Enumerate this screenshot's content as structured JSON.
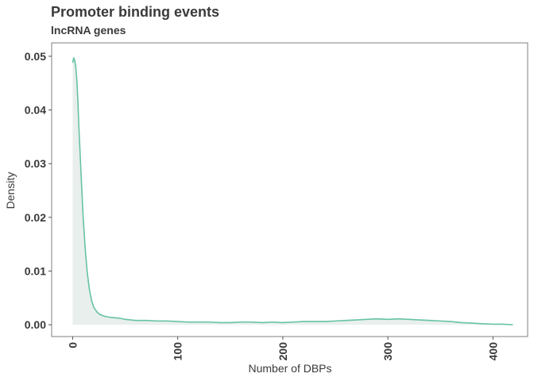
{
  "chart_data": {
    "type": "area",
    "title": "Promoter binding events",
    "subtitle": "lncRNA genes",
    "xlabel": "Number of DBPs",
    "ylabel": "Density",
    "xlim": [
      -20,
      433
    ],
    "ylim": [
      -0.0022,
      0.0525
    ],
    "x_ticks": [
      0,
      100,
      200,
      300,
      400
    ],
    "y_ticks": [
      0.0,
      0.01,
      0.02,
      0.03,
      0.04,
      0.05
    ],
    "x_tick_labels": [
      "0",
      "100",
      "200",
      "300",
      "400"
    ],
    "y_tick_labels": [
      "0.00",
      "0.01",
      "0.02",
      "0.03",
      "0.04",
      "0.05"
    ],
    "grid": false,
    "legend": "none",
    "colors": {
      "line": "#66c2a5",
      "fill": "#e9efec",
      "frame": "#7f7f7f",
      "text": "#3a3a3a"
    },
    "series": [
      {
        "x": [
          0,
          1,
          2,
          3,
          4,
          5,
          6,
          8,
          10,
          12,
          14,
          16,
          18,
          20,
          23,
          26,
          30,
          35,
          40,
          45,
          50,
          60,
          70,
          80,
          90,
          100,
          110,
          120,
          130,
          140,
          150,
          160,
          170,
          180,
          190,
          200,
          210,
          220,
          230,
          240,
          250,
          260,
          270,
          280,
          290,
          300,
          310,
          320,
          330,
          340,
          350,
          360,
          370,
          380,
          390,
          400,
          410,
          419
        ],
        "y": [
          0.0488,
          0.0497,
          0.0492,
          0.048,
          0.0455,
          0.0415,
          0.0365,
          0.028,
          0.02,
          0.014,
          0.0095,
          0.0065,
          0.0045,
          0.0033,
          0.0024,
          0.0019,
          0.0016,
          0.0014,
          0.0013,
          0.0012,
          0.001,
          0.0008,
          0.0008,
          0.0007,
          0.0007,
          0.0006,
          0.0005,
          0.0005,
          0.0005,
          0.0004,
          0.0004,
          0.0005,
          0.0005,
          0.0004,
          0.0005,
          0.0004,
          0.0005,
          0.0006,
          0.0006,
          0.0006,
          0.0007,
          0.0008,
          0.0009,
          0.001,
          0.0011,
          0.001,
          0.0011,
          0.001,
          0.0009,
          0.0008,
          0.0007,
          0.0006,
          0.0004,
          0.0003,
          0.0002,
          0.0001,
          0.0001,
          0.0
        ]
      }
    ]
  }
}
